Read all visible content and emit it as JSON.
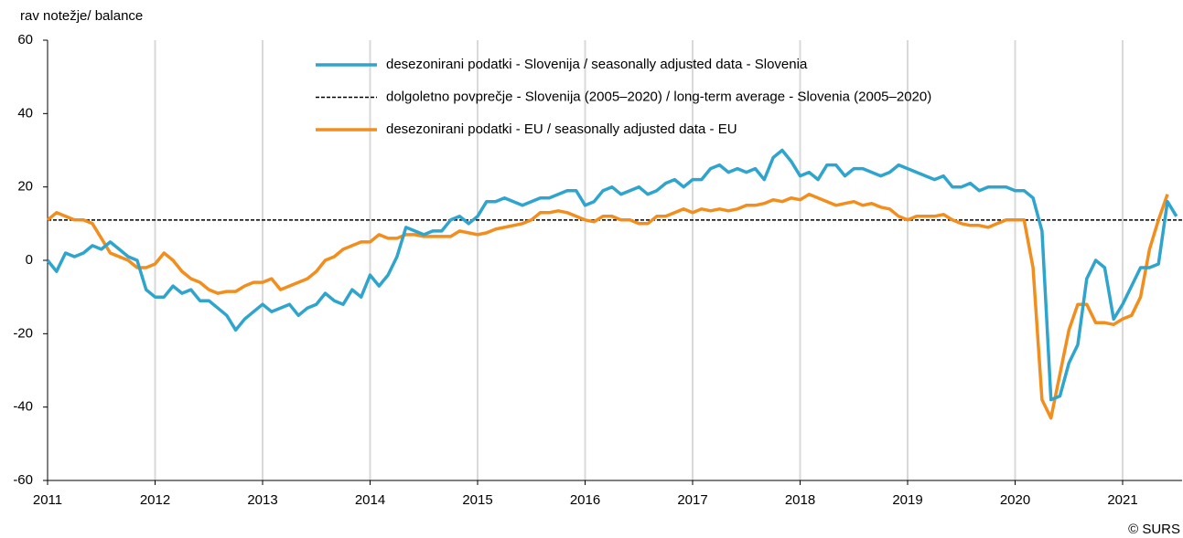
{
  "chart_data": {
    "type": "line",
    "y_label": "rav notežje/ balance",
    "source": "© SURS",
    "categories": [
      "2011",
      null,
      null,
      null,
      null,
      null,
      null,
      null,
      null,
      null,
      null,
      null,
      "2012",
      null,
      null,
      null,
      null,
      null,
      null,
      null,
      null,
      null,
      null,
      null,
      "2013",
      null,
      null,
      null,
      null,
      null,
      null,
      null,
      null,
      null,
      null,
      null,
      "2014",
      null,
      null,
      null,
      null,
      null,
      null,
      null,
      null,
      null,
      null,
      null,
      "2015",
      null,
      null,
      null,
      null,
      null,
      null,
      null,
      null,
      null,
      null,
      null,
      "2016",
      null,
      null,
      null,
      null,
      null,
      null,
      null,
      null,
      null,
      null,
      null,
      "2017",
      null,
      null,
      null,
      null,
      null,
      null,
      null,
      null,
      null,
      null,
      null,
      "2018",
      null,
      null,
      null,
      null,
      null,
      null,
      null,
      null,
      null,
      null,
      null,
      "2019",
      null,
      null,
      null,
      null,
      null,
      null,
      null,
      null,
      null,
      null,
      null,
      "2020",
      null,
      null,
      null,
      null,
      null,
      null,
      null,
      null,
      null,
      null,
      null,
      "2021",
      null,
      null,
      null,
      null,
      null,
      null
    ],
    "series": [
      {
        "name": "desezonirani podatki - Slovenija / seasonally adjusted data - Slovenia",
        "color": "#2fa4cc",
        "values": [
          0,
          -3,
          2,
          1,
          2,
          4,
          3,
          5,
          3,
          1,
          0,
          -8,
          -10,
          -10,
          -7,
          -9,
          -8,
          -11,
          -11,
          -13,
          -15,
          -19,
          -16,
          -14,
          -12,
          -14,
          -13,
          -12,
          -15,
          -13,
          -12,
          -9,
          -11,
          -12,
          -8,
          -10,
          -4,
          -7,
          -4,
          1,
          9,
          8,
          7,
          8,
          8,
          11,
          12,
          10,
          12,
          16,
          16,
          17,
          16,
          15,
          16,
          17,
          17,
          18,
          19,
          19,
          15,
          16,
          19,
          20,
          18,
          19,
          20,
          18,
          19,
          21,
          22,
          20,
          22,
          22,
          25,
          26,
          24,
          25,
          24,
          25,
          22,
          28,
          30,
          27,
          23,
          24,
          22,
          26,
          26,
          23,
          25,
          25,
          24,
          23,
          24,
          26,
          25,
          24,
          23,
          22,
          23,
          20,
          20,
          21,
          19,
          20,
          20,
          20,
          19,
          19,
          17,
          8,
          -38,
          -37,
          -28,
          -23,
          -5,
          0,
          -2,
          -16,
          -12,
          -7,
          -2,
          -2,
          -1,
          16,
          12
        ]
      },
      {
        "name": "desezonirani podatki - EU / seasonally adjusted data - EU",
        "color": "#f28e1e",
        "values": [
          11,
          13,
          12,
          11,
          11,
          10,
          6,
          2,
          1,
          0,
          -2,
          -2,
          -1,
          2,
          0,
          -3,
          -5,
          -6,
          -8,
          -9,
          -8.5,
          -8.5,
          -7,
          -6,
          -6,
          -5,
          -8,
          -7,
          -6,
          -5,
          -3,
          0,
          1,
          3,
          4,
          5,
          5,
          7,
          6,
          6,
          7,
          7,
          6.5,
          6.5,
          6.5,
          6.5,
          8,
          7.5,
          7,
          7.5,
          8.5,
          9,
          9.5,
          10,
          11,
          13,
          13,
          13.5,
          13,
          12,
          11,
          10.5,
          12,
          12,
          11,
          11,
          10,
          10,
          12,
          12,
          13,
          14,
          13,
          14,
          13.5,
          14,
          13.5,
          14,
          15,
          15,
          15.5,
          16.5,
          16,
          17,
          16.5,
          18,
          17,
          16,
          15,
          15.5,
          16,
          15,
          15.5,
          14.5,
          14,
          12,
          11,
          12,
          12,
          12,
          12.5,
          11,
          10,
          9.5,
          9.5,
          9,
          10,
          11,
          11,
          11,
          -2,
          -38,
          -43,
          -31,
          -19,
          -12,
          -12,
          -17,
          -17,
          -17.5,
          -16,
          -15,
          -10,
          3,
          11,
          18,
          null
        ]
      }
    ],
    "reference_line": {
      "name": "dolgoletno povprečje - Slovenija (2005–2020) / long-term average - Slovenia (2005–2020)",
      "value": 11,
      "color": "#000000"
    },
    "ylim": [
      -60,
      60
    ],
    "yticks": [
      -60,
      -40,
      -20,
      0,
      20,
      40,
      60
    ],
    "grid": "x"
  }
}
